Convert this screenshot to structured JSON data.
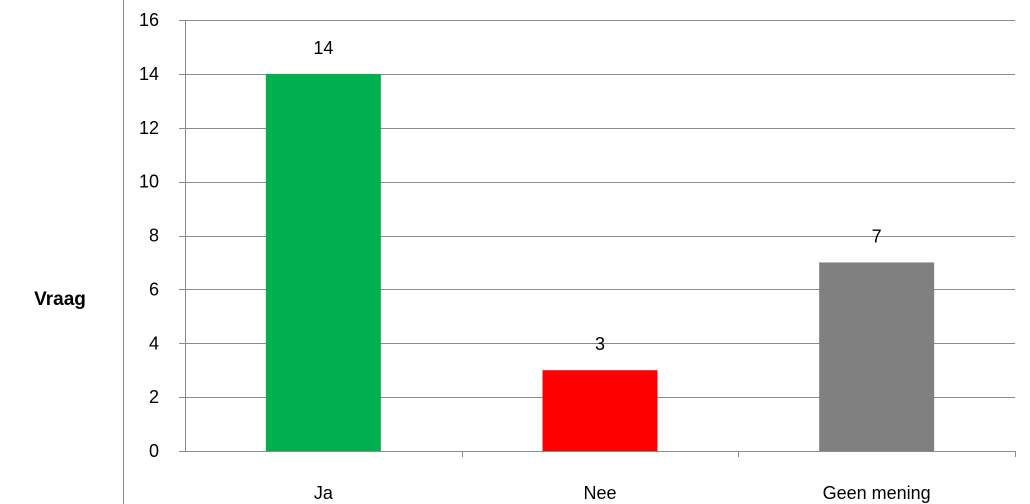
{
  "chart_data": {
    "type": "bar",
    "row_label": "Vraag",
    "categories": [
      "Ja",
      "Nee",
      "Geen mening"
    ],
    "values": [
      14,
      3,
      7
    ],
    "colors": [
      "#00B050",
      "#FF0000",
      "#808080"
    ],
    "ylim": [
      0,
      16
    ],
    "yticks": [
      0,
      2,
      4,
      6,
      8,
      10,
      12,
      14,
      16
    ],
    "gridlines": true,
    "legend": "none"
  }
}
